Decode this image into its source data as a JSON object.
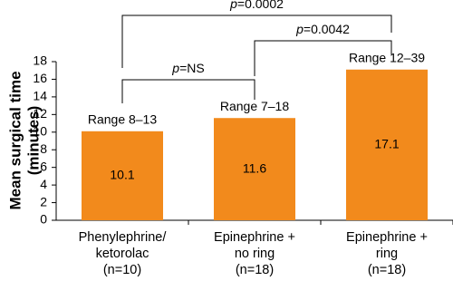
{
  "chart_data": {
    "type": "bar",
    "y_label": [
      "Mean surgical time",
      "(minutes)"
    ],
    "categories": [
      [
        "Phenylephrine/",
        "ketorolac",
        "(n=10)"
      ],
      [
        "Epinephrine +",
        "no ring",
        "(n=18)"
      ],
      [
        "Epinephrine +",
        "ring",
        "(n=18)"
      ]
    ],
    "values": [
      10.1,
      11.6,
      17.1
    ],
    "ranges": [
      "Range 8–13",
      "Range 7–18",
      "Range 12–39"
    ],
    "comparisons": [
      {
        "italic": "p",
        "text": "=NS"
      },
      {
        "italic": "p",
        "text": "=0.0042"
      },
      {
        "italic": "p",
        "text": "=0.0002"
      }
    ],
    "color": "#f28a1c",
    "ylim": [
      0,
      18
    ],
    "yticks": [
      0,
      2,
      4,
      6,
      8,
      10,
      12,
      14,
      16,
      18
    ]
  }
}
